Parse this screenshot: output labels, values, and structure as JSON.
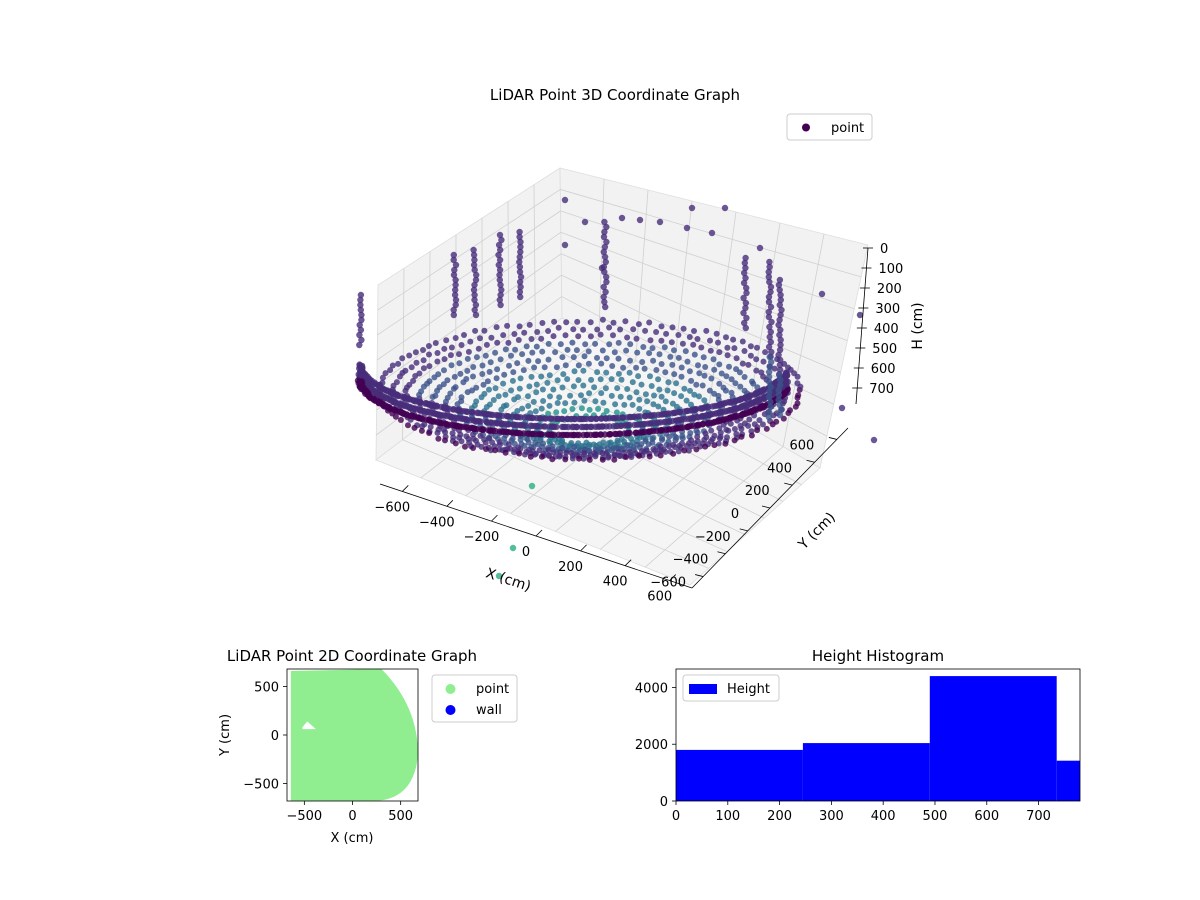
{
  "chart_data": [
    {
      "type": "scatter3d",
      "title": "LiDAR Point 3D Coordinate Graph",
      "xlabel": "X (cm)",
      "ylabel": "Y (cm)",
      "zlabel": "H (cm)",
      "xlim": [
        -700,
        700
      ],
      "ylim": [
        -700,
        700
      ],
      "zlim": [
        0,
        780
      ],
      "z_inverted": true,
      "xticks": [
        -600,
        -400,
        -200,
        0,
        200,
        400,
        600
      ],
      "yticks": [
        -600,
        -400,
        -200,
        0,
        200,
        400,
        600
      ],
      "zticks": [
        0,
        100,
        200,
        300,
        400,
        500,
        600,
        700
      ],
      "grid": true,
      "legend": {
        "placement": "upper-right",
        "entries": [
          "point"
        ]
      },
      "colormap": [
        "#440154",
        "#472d7b",
        "#3b528b",
        "#2c728e",
        "#21918c",
        "#28ae80",
        "#5ec962"
      ],
      "series": [
        {
          "name": "point",
          "marker_color": "#440154"
        }
      ]
    },
    {
      "type": "scatter",
      "title": "LiDAR Point 2D Coordinate Graph",
      "xlabel": "X (cm)",
      "ylabel": "Y (cm)",
      "xlim": [
        -680,
        680
      ],
      "ylim": [
        -680,
        680
      ],
      "xticks": [
        -500,
        0,
        500
      ],
      "yticks": [
        -500,
        0,
        500
      ],
      "legend": {
        "placement": "outside-right",
        "entries": [
          "point",
          "wall"
        ]
      },
      "series": [
        {
          "name": "point",
          "color": "#90ee90"
        },
        {
          "name": "wall",
          "color": "#0000ff"
        }
      ]
    },
    {
      "type": "bar",
      "title": "Height Histogram",
      "xlim": [
        0,
        780
      ],
      "ylim": [
        0,
        4650
      ],
      "xticks": [
        0,
        100,
        200,
        300,
        400,
        500,
        600,
        700
      ],
      "yticks": [
        0,
        2000,
        4000
      ],
      "legend": {
        "placement": "upper-left",
        "entries": [
          "Height"
        ]
      },
      "color": "#0000ff",
      "series": [
        {
          "name": "Height",
          "bins": [
            {
              "x0": 0,
              "x1": 245,
              "value": 1800
            },
            {
              "x0": 245,
              "x1": 490,
              "value": 2040
            },
            {
              "x0": 490,
              "x1": 735,
              "value": 4400
            },
            {
              "x0": 735,
              "x1": 780,
              "value": 1420
            }
          ]
        }
      ]
    }
  ]
}
